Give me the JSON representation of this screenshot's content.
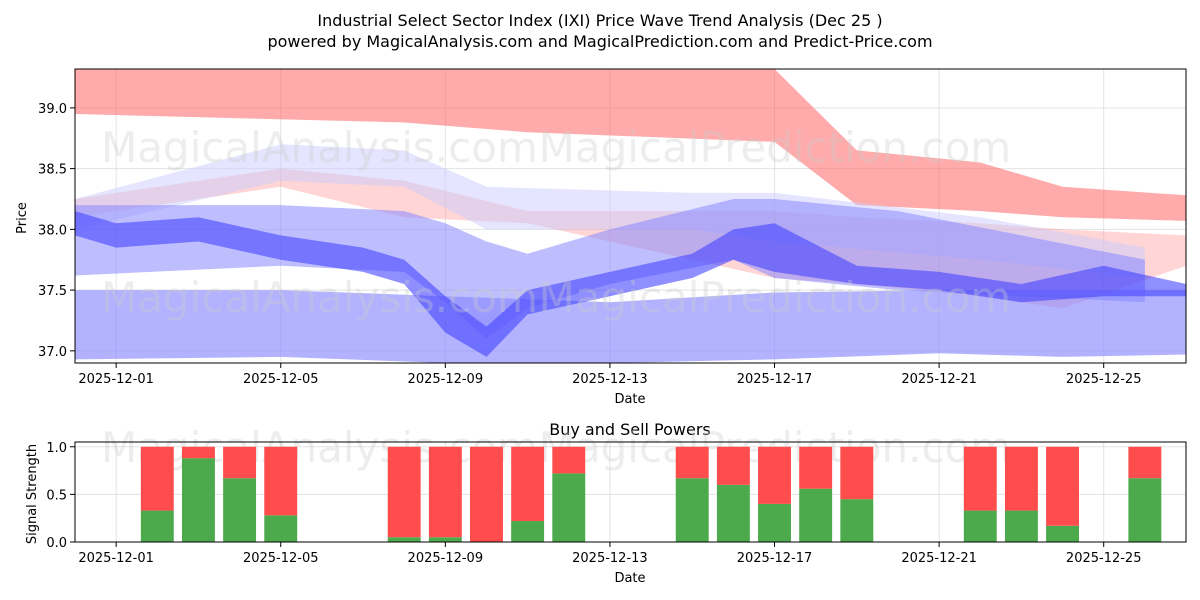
{
  "chart_data": [
    {
      "type": "area",
      "title": "Industrial Select Sector Index (IXI) Price Wave Trend Analysis (Dec 25 )",
      "subtitle": "powered by MagicalAnalysis.com and MagicalPrediction.com and Predict-Price.com",
      "xlabel": "Date",
      "ylabel": "Price",
      "xlim": [
        "2025-11-30",
        "2025-12-27"
      ],
      "ylim": [
        36.9,
        39.32
      ],
      "xticks": [
        "2025-12-01",
        "2025-12-05",
        "2025-12-09",
        "2025-12-13",
        "2025-12-17",
        "2025-12-21",
        "2025-12-25"
      ],
      "yticks": [
        37.0,
        37.5,
        38.0,
        38.5,
        39.0
      ],
      "grid": true,
      "series": [
        {
          "name": "red-upper-band",
          "color": "#ff6666",
          "opacity": 0.55,
          "x": [
            "2025-11-30",
            "2025-12-08",
            "2025-12-11",
            "2025-12-17",
            "2025-12-19",
            "2025-12-22",
            "2025-12-24",
            "2025-12-27"
          ],
          "upper": [
            39.32,
            39.32,
            39.32,
            39.32,
            38.65,
            38.55,
            38.35,
            38.28
          ],
          "lower": [
            38.95,
            38.88,
            38.8,
            38.72,
            38.2,
            38.15,
            38.1,
            38.07
          ]
        },
        {
          "name": "red-lower-band",
          "color": "#ff8888",
          "opacity": 0.35,
          "x": [
            "2025-11-30",
            "2025-12-05",
            "2025-12-08",
            "2025-12-11",
            "2025-12-17",
            "2025-12-19",
            "2025-12-22",
            "2025-12-24",
            "2025-12-27"
          ],
          "upper": [
            38.25,
            38.5,
            38.4,
            38.15,
            38.15,
            38.1,
            38.05,
            38.0,
            37.95
          ],
          "lower": [
            38.1,
            38.35,
            38.1,
            38.05,
            37.6,
            37.55,
            37.45,
            37.35,
            37.7
          ]
        },
        {
          "name": "light-blue-band",
          "color": "#ccccff",
          "opacity": 0.5,
          "x": [
            "2025-11-30",
            "2025-12-05",
            "2025-12-08",
            "2025-12-10",
            "2025-12-15",
            "2025-12-17",
            "2025-12-22",
            "2025-12-26"
          ],
          "upper": [
            38.25,
            38.7,
            38.65,
            38.35,
            38.3,
            38.3,
            38.1,
            37.85
          ],
          "lower": [
            38.0,
            38.4,
            38.35,
            38.0,
            38.0,
            37.9,
            37.75,
            37.6
          ]
        },
        {
          "name": "blue-mid-band",
          "color": "#8888ff",
          "opacity": 0.55,
          "x": [
            "2025-11-30",
            "2025-12-05",
            "2025-12-08",
            "2025-12-09",
            "2025-12-10",
            "2025-12-11",
            "2025-12-13",
            "2025-12-16",
            "2025-12-17",
            "2025-12-20",
            "2025-12-23",
            "2025-12-26"
          ],
          "upper": [
            38.2,
            38.2,
            38.15,
            38.05,
            37.9,
            37.8,
            38.0,
            38.25,
            38.25,
            38.15,
            37.95,
            37.75
          ],
          "lower": [
            37.62,
            37.7,
            37.65,
            37.4,
            37.1,
            37.35,
            37.55,
            37.75,
            37.6,
            37.5,
            37.45,
            37.4
          ]
        },
        {
          "name": "blue-bottom-band",
          "color": "#8888ff",
          "opacity": 0.65,
          "x": [
            "2025-11-30",
            "2025-12-05",
            "2025-12-09",
            "2025-12-13",
            "2025-12-17",
            "2025-12-21",
            "2025-12-24",
            "2025-12-27"
          ],
          "upper": [
            37.5,
            37.5,
            37.45,
            37.4,
            37.48,
            37.5,
            37.5,
            37.5
          ],
          "lower": [
            36.93,
            36.95,
            36.9,
            36.9,
            36.93,
            36.98,
            36.95,
            36.97
          ]
        },
        {
          "name": "blue-wave-line",
          "color": "#4444ff",
          "opacity": 0.6,
          "x": [
            "2025-11-30",
            "2025-12-01",
            "2025-12-03",
            "2025-12-05",
            "2025-12-07",
            "2025-12-08",
            "2025-12-09",
            "2025-12-10",
            "2025-12-11",
            "2025-12-13",
            "2025-12-15",
            "2025-12-16",
            "2025-12-17",
            "2025-12-19",
            "2025-12-21",
            "2025-12-23",
            "2025-12-25",
            "2025-12-27"
          ],
          "upper": [
            38.15,
            38.05,
            38.1,
            37.95,
            37.85,
            37.75,
            37.45,
            37.2,
            37.5,
            37.65,
            37.8,
            38.0,
            38.05,
            37.7,
            37.65,
            37.55,
            37.7,
            37.55
          ],
          "lower": [
            37.95,
            37.85,
            37.9,
            37.75,
            37.65,
            37.55,
            37.15,
            36.95,
            37.3,
            37.45,
            37.6,
            37.75,
            37.65,
            37.55,
            37.5,
            37.4,
            37.45,
            37.45
          ]
        }
      ],
      "watermarks": [
        "MagicalAnalysis.com",
        "MagicalPrediction.com"
      ]
    },
    {
      "type": "bar",
      "title": "Buy and Sell Powers",
      "xlabel": "Date",
      "ylabel": "Signal Strength",
      "xlim": [
        "2025-11-30",
        "2025-12-27"
      ],
      "ylim": [
        0,
        1.05
      ],
      "xticks": [
        "2025-12-01",
        "2025-12-05",
        "2025-12-09",
        "2025-12-13",
        "2025-12-17",
        "2025-12-21",
        "2025-12-25"
      ],
      "yticks": [
        0.0,
        0.5,
        1.0
      ],
      "grid": true,
      "colors": {
        "buy": "#4caa4c",
        "sell": "#ff4d4d"
      },
      "dates": [
        "2025-12-02",
        "2025-12-03",
        "2025-12-04",
        "2025-12-05",
        "2025-12-08",
        "2025-12-09",
        "2025-12-10",
        "2025-12-11",
        "2025-12-12",
        "2025-12-15",
        "2025-12-16",
        "2025-12-17",
        "2025-12-18",
        "2025-12-19",
        "2025-12-22",
        "2025-12-23",
        "2025-12-24",
        "2025-12-26"
      ],
      "series": [
        {
          "name": "Buy",
          "values": [
            0.33,
            0.88,
            0.67,
            0.28,
            0.05,
            0.05,
            0.0,
            0.22,
            0.72,
            0.67,
            0.6,
            0.4,
            0.56,
            0.45,
            0.33,
            0.33,
            0.17,
            0.67
          ]
        },
        {
          "name": "Sell",
          "values": [
            0.67,
            0.12,
            0.33,
            0.72,
            0.95,
            0.95,
            1.0,
            0.78,
            0.28,
            0.33,
            0.4,
            0.6,
            0.44,
            0.55,
            0.67,
            0.67,
            0.83,
            0.33
          ]
        }
      ],
      "watermarks": [
        "MagicalAnalysis.com",
        "MagicalPrediction.com"
      ]
    }
  ]
}
